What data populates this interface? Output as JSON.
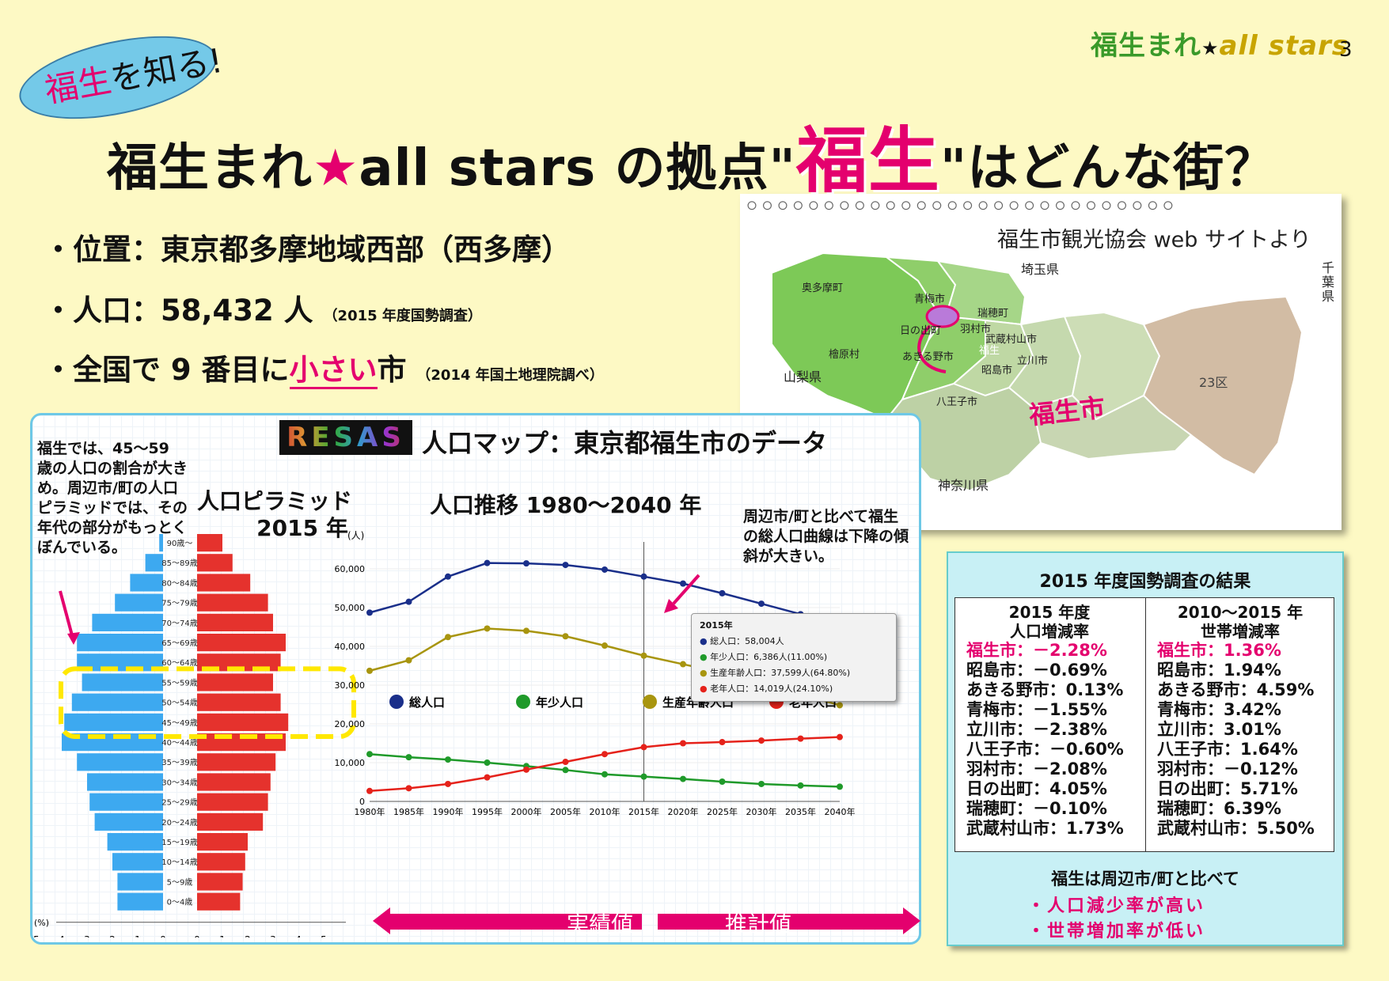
{
  "header": {
    "logo_text_jp": "福生まれ",
    "logo_star": "★",
    "logo_text_en": "all stars",
    "page_number": "3",
    "bubble_pink": "福生",
    "bubble_rest": "を知る!",
    "title_part1": "福生まれ",
    "title_star": "★",
    "title_part2": "all stars の拠点",
    "title_quote_open": "\"",
    "title_highlight": "福生",
    "title_quote_close": "\"",
    "title_part3": "はどんな街？"
  },
  "bullets": [
    {
      "prefix": "・位置：東京都多摩地域西部（西多摩）",
      "note": ""
    },
    {
      "prefix": "・人口：58,432 人",
      "note": "（2015 年度国勢調査）"
    },
    {
      "prefix": "・全国で 9 番目に",
      "highlight": "小さい",
      "suffix": "市",
      "note": "（2014 年国土地理院調べ）"
    }
  ],
  "map": {
    "source": "福生市観光協会 web サイトより",
    "prefectures": [
      "埼玉県",
      "千葉県",
      "山梨県",
      "神奈川県"
    ],
    "wards": "23区",
    "municipalities": [
      "奥多摩町",
      "青梅市",
      "瑞穂町",
      "羽村市",
      "武蔵村山市",
      "日の出町",
      "あきる野市",
      "檜原村",
      "昭島市",
      "立川市",
      "八王子市",
      "福生"
    ],
    "callout": "福生市"
  },
  "resas": {
    "logo": "RESAS",
    "title": "人口マップ：東京都福生市のデータ",
    "note_left": "福生では、45～59 歳の人口の割合が大きめ。周辺市/町の人口ピラミッドでは、その年代の部分がもっとくぼんでいる。",
    "pyramid_title_1": "人口ピラミッド",
    "pyramid_title_2": "2015 年",
    "trend_title": "人口推移 1980～2040 年",
    "note_right": "周辺市/町と比べて福生の総人口曲線は下降の傾斜が大きい。",
    "actual_label": "実績値",
    "projection_label": "推計値",
    "tooltip": {
      "year": "2015年",
      "rows": [
        "総人口：58,004人",
        "年少人口：6,386人(11.00%)",
        "生産年齢人口：37,599人(64.80%)",
        "老年人口：14,019人(24.10%)"
      ]
    }
  },
  "chart_data": [
    {
      "type": "bar",
      "subtype": "population-pyramid",
      "unit_label": "(人)",
      "xlabel": "(%)",
      "x_ticks_left": [
        "5",
        "4",
        "3",
        "2",
        "1",
        "0"
      ],
      "x_ticks_right": [
        "0",
        "1",
        "2",
        "3",
        "4",
        "5"
      ],
      "xlim": [
        0,
        5
      ],
      "categories": [
        "90歳～",
        "85～89歳",
        "80～84歳",
        "75～79歳",
        "70～74歳",
        "65～69歳",
        "60～64歳",
        "55～59歳",
        "50～54歳",
        "45～49歳",
        "40～44歳",
        "35～39歳",
        "30～34歳",
        "25～29歳",
        "20～24歳",
        "15～19歳",
        "10～14歳",
        "5～9歳",
        "0～4歳"
      ],
      "series": [
        {
          "side": "left",
          "color": "#3da9f0",
          "values": [
            0.15,
            0.7,
            1.3,
            1.9,
            2.8,
            3.4,
            3.4,
            3.2,
            3.6,
            3.9,
            4.0,
            3.4,
            3.0,
            2.9,
            2.7,
            2.2,
            2.0,
            1.8,
            1.8
          ]
        },
        {
          "side": "right",
          "color": "#e5322d",
          "values": [
            1.0,
            1.4,
            2.1,
            2.8,
            3.0,
            3.5,
            3.3,
            3.0,
            3.3,
            3.6,
            3.5,
            3.1,
            2.9,
            2.8,
            2.6,
            2.0,
            1.9,
            1.8,
            1.7
          ]
        }
      ],
      "highlight": [
        "55～59歳",
        "45～49歳"
      ]
    },
    {
      "type": "line",
      "x": [
        1980,
        1985,
        1990,
        1995,
        2000,
        2005,
        2010,
        2015,
        2020,
        2025,
        2030,
        2035,
        2040
      ],
      "x_tick_labels": [
        "1980年",
        "1985年",
        "1990年",
        "1995年",
        "2000年",
        "2005年",
        "2010年",
        "2015年",
        "2020年",
        "2025年",
        "2030年",
        "2035年",
        "2040年"
      ],
      "y_tick_labels": [
        "0",
        "10,000",
        "20,000",
        "30,000",
        "40,000",
        "50,000",
        "60,000"
      ],
      "ylim": [
        0,
        60000
      ],
      "divider_x": 2015,
      "series": [
        {
          "name": "総人口",
          "color": "#1a2f8a",
          "values": [
            48700,
            51500,
            58000,
            61500,
            61400,
            61000,
            59800,
            58000,
            56200,
            53700,
            51000,
            48300,
            45300
          ]
        },
        {
          "name": "年少人口",
          "color": "#1f9a2a",
          "values": [
            12200,
            11400,
            10800,
            10000,
            9100,
            8100,
            7000,
            6400,
            5800,
            5100,
            4500,
            4100,
            3800
          ]
        },
        {
          "name": "生産年齢人口",
          "color": "#a8950f",
          "values": [
            33700,
            36400,
            42400,
            44600,
            44000,
            42600,
            40200,
            37600,
            35400,
            33200,
            30600,
            27700,
            24800
          ]
        },
        {
          "name": "老年人口",
          "color": "#e5221b",
          "values": [
            2700,
            3400,
            4500,
            6200,
            8200,
            10200,
            12200,
            14000,
            15000,
            15300,
            15700,
            16200,
            16600
          ]
        }
      ]
    }
  ],
  "census": {
    "title": "2015 年度国勢調査の結果",
    "col1_head_1": "2015 年度",
    "col1_head_2": "人口増減率",
    "col2_head_1": "2010～2015 年",
    "col2_head_2": "世帯増減率",
    "col1_rows": [
      "福生市：－2.28%",
      "昭島市：－0.69%",
      "あきる野市：0.13%",
      "青梅市：－1.55%",
      "立川市：－2.38%",
      "八王子市：－0.60%",
      "羽村市：－2.08%",
      "日の出町：4.05%",
      "瑞穂町：－0.10%",
      "武蔵村山市：1.73%"
    ],
    "col2_rows": [
      "福生市：1.36%",
      "昭島市：1.94%",
      "あきる野市：4.59%",
      "青梅市：3.42%",
      "立川市：3.01%",
      "八王子市：1.64%",
      "羽村市：－0.12%",
      "日の出町：5.71%",
      "瑞穂町：6.39%",
      "武蔵村山市：5.50%"
    ],
    "conclusion": "福生は周辺市/町と比べて",
    "points": [
      "・人口減少率が高い",
      "・世帯増加率が低い"
    ]
  }
}
